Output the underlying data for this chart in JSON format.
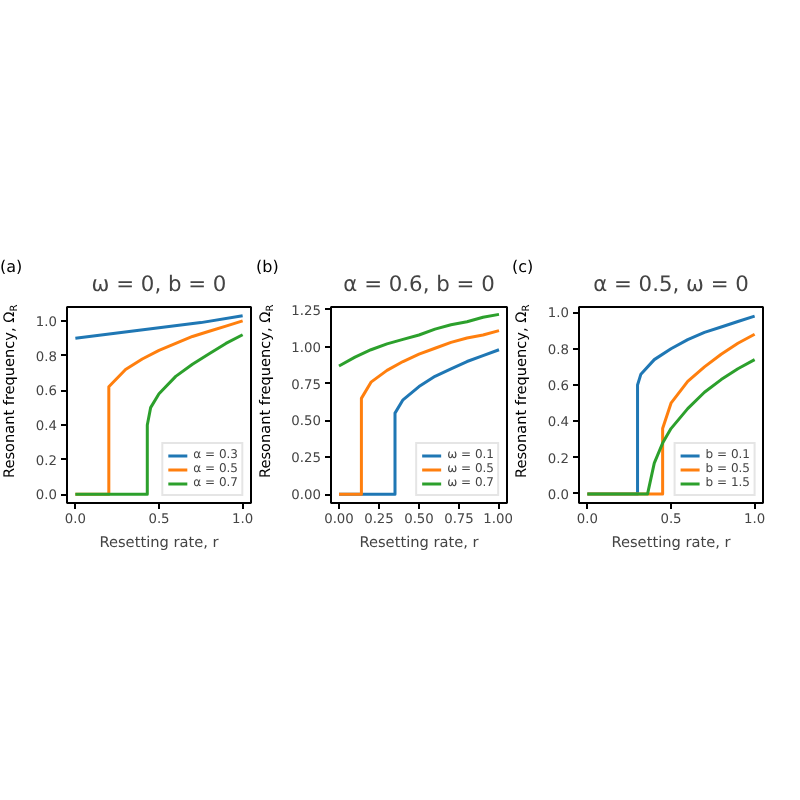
{
  "chart_data": [
    {
      "type": "line",
      "title": "ω = 0, b = 0",
      "xlabel": "Resetting rate, r",
      "ylabel": "Resonant frequency, Ω$_{R}$",
      "annotations": [
        "(a)"
      ],
      "xlim": [
        -0.05,
        1.05
      ],
      "ylim": [
        -0.05,
        1.08
      ],
      "xticks": [
        {
          "value": 0,
          "label": "0.0"
        },
        0.5,
        {
          "value": 1,
          "label": "1.0"
        }
      ],
      "yticks": [
        {
          "value": 0,
          "label": "0.0"
        },
        0.2,
        0.4,
        0.6,
        0.8,
        {
          "value": 1,
          "label": "1.0"
        }
      ],
      "legend": "bottom right",
      "grid": false,
      "series": [
        {
          "name": "α = 0.3",
          "color": "#1f77b4",
          "x": [
            0,
            0.25,
            0.5,
            0.75,
            1.0
          ],
          "values": [
            0.9,
            0.93,
            0.96,
            0.99,
            1.03
          ]
        },
        {
          "name": "α = 0.5",
          "color": "#ff7f0e",
          "x": [
            0,
            0.2,
            0.2,
            0.3,
            0.4,
            0.5,
            0.6,
            0.7,
            0.8,
            0.9,
            1.0
          ],
          "values": [
            0,
            0,
            0.62,
            0.72,
            0.78,
            0.83,
            0.87,
            0.91,
            0.94,
            0.97,
            1.0
          ]
        },
        {
          "name": "α = 0.7",
          "color": "#2ca02c",
          "x": [
            0,
            0.43,
            0.43,
            0.45,
            0.5,
            0.6,
            0.7,
            0.8,
            0.9,
            1.0
          ],
          "values": [
            0,
            0,
            0.4,
            0.5,
            0.58,
            0.68,
            0.75,
            0.81,
            0.87,
            0.92
          ]
        }
      ]
    },
    {
      "type": "line",
      "title": "α = 0.6, b = 0",
      "xlabel": "Resetting rate, r",
      "ylabel": "Resonant frequency, Ω$_{R}$",
      "annotations": [
        "(b)"
      ],
      "xlim": [
        -0.05,
        1.05
      ],
      "ylim": [
        -0.06,
        1.27
      ],
      "xticks": [
        {
          "value": 0,
          "label": "0.00"
        },
        0.25,
        {
          "value": 0.5,
          "label": "0.50"
        },
        0.75,
        {
          "value": 1,
          "label": "1.00"
        }
      ],
      "yticks": [
        {
          "value": 0,
          "label": "0.00"
        },
        0.25,
        {
          "value": 0.5,
          "label": "0.50"
        },
        0.75,
        {
          "value": 1,
          "label": "1.00"
        },
        1.25
      ],
      "legend": "bottom right",
      "grid": false,
      "series": [
        {
          "name": "ω = 0.1",
          "color": "#1f77b4",
          "x": [
            0,
            0.35,
            0.35,
            0.4,
            0.5,
            0.6,
            0.7,
            0.8,
            0.9,
            1.0
          ],
          "values": [
            0,
            0,
            0.55,
            0.64,
            0.73,
            0.8,
            0.85,
            0.9,
            0.94,
            0.98
          ]
        },
        {
          "name": "ω = 0.5",
          "color": "#ff7f0e",
          "x": [
            0,
            0.14,
            0.14,
            0.2,
            0.3,
            0.4,
            0.5,
            0.6,
            0.7,
            0.8,
            0.9,
            1.0
          ],
          "values": [
            0,
            0,
            0.65,
            0.76,
            0.84,
            0.9,
            0.95,
            0.99,
            1.03,
            1.06,
            1.08,
            1.11
          ]
        },
        {
          "name": "ω = 0.7",
          "color": "#2ca02c",
          "x": [
            0,
            0.1,
            0.2,
            0.3,
            0.4,
            0.5,
            0.6,
            0.7,
            0.8,
            0.9,
            1.0
          ],
          "values": [
            0.87,
            0.93,
            0.98,
            1.02,
            1.05,
            1.08,
            1.12,
            1.15,
            1.17,
            1.2,
            1.22
          ]
        }
      ]
    },
    {
      "type": "line",
      "title": "α = 0.5, ω = 0",
      "xlabel": "Resetting rate, r",
      "ylabel": "Resonant frequency, Ω$_{R}$",
      "annotations": [
        "(c)"
      ],
      "xlim": [
        -0.05,
        1.05
      ],
      "ylim": [
        -0.05,
        1.03
      ],
      "xticks": [
        {
          "value": 0,
          "label": "0.0"
        },
        0.5,
        {
          "value": 1,
          "label": "1.0"
        }
      ],
      "yticks": [
        {
          "value": 0,
          "label": "0.0"
        },
        0.2,
        0.4,
        0.6,
        0.8,
        {
          "value": 1,
          "label": "1.0"
        }
      ],
      "legend": "bottom right",
      "grid": false,
      "series": [
        {
          "name": "b = 0.1",
          "color": "#1f77b4",
          "x": [
            0,
            0.3,
            0.3,
            0.32,
            0.4,
            0.5,
            0.6,
            0.7,
            0.8,
            0.9,
            1.0
          ],
          "values": [
            0,
            0,
            0.6,
            0.66,
            0.74,
            0.8,
            0.85,
            0.89,
            0.92,
            0.95,
            0.98
          ]
        },
        {
          "name": "b = 0.5",
          "color": "#ff7f0e",
          "x": [
            0,
            0.45,
            0.45,
            0.5,
            0.6,
            0.7,
            0.8,
            0.9,
            1.0
          ],
          "values": [
            0,
            0,
            0.36,
            0.5,
            0.62,
            0.7,
            0.77,
            0.83,
            0.88
          ]
        },
        {
          "name": "b = 1.5",
          "color": "#2ca02c",
          "x": [
            0,
            0.36,
            0.4,
            0.45,
            0.5,
            0.6,
            0.7,
            0.8,
            0.9,
            1.0
          ],
          "values": [
            0,
            0,
            0.17,
            0.28,
            0.36,
            0.47,
            0.56,
            0.63,
            0.69,
            0.74
          ]
        }
      ]
    }
  ]
}
